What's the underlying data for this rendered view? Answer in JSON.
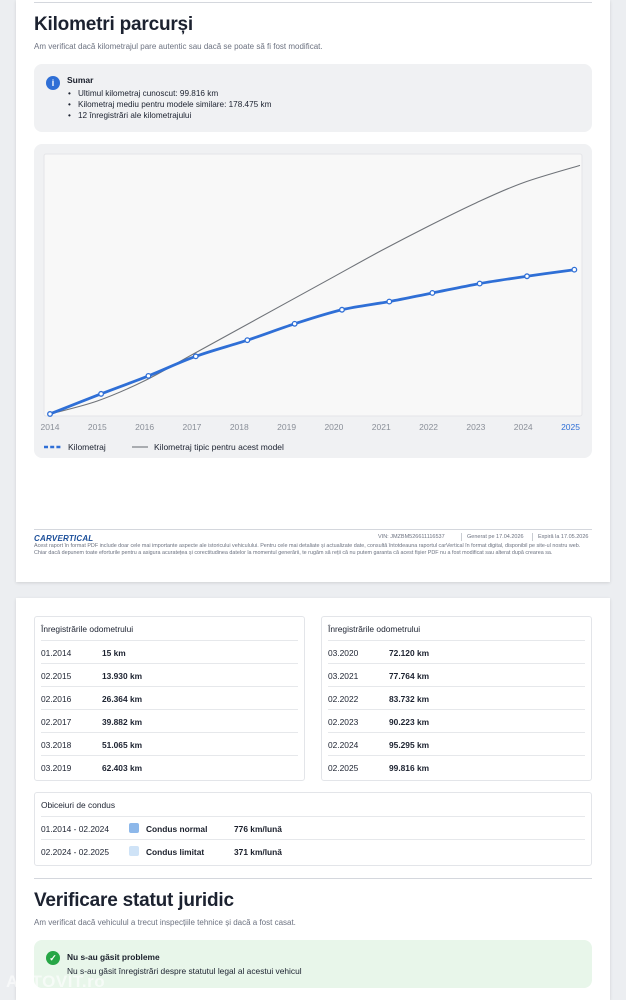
{
  "mileage_section": {
    "title": "Kilometri parcurși",
    "subtitle": "Am verificat dacă kilometrajul pare autentic sau dacă se poate să fi fost modificat.",
    "summary": {
      "title": "Sumar",
      "items": [
        "Ultimul kilometraj cunoscut: 99.816 km",
        "Kilometraj mediu pentru modele similare: 178.475 km",
        "12 înregistrări ale kilometrajului"
      ]
    }
  },
  "chart_data": {
    "type": "line",
    "x_ticks": [
      "2014",
      "2015",
      "2016",
      "2017",
      "2018",
      "2019",
      "2020",
      "2021",
      "2022",
      "2023",
      "2024",
      "2025"
    ],
    "highlight_tick": "2025",
    "xlim": [
      2014,
      2025.2
    ],
    "ylim": [
      0,
      178475
    ],
    "grid": false,
    "legend_position": "bottom-left",
    "series": [
      {
        "name": "Kilometraj",
        "color": "#2f6fd6",
        "style": "solid-with-markers",
        "points": [
          [
            2014.0,
            15
          ],
          [
            2015.08,
            13930
          ],
          [
            2016.08,
            26364
          ],
          [
            2017.08,
            39882
          ],
          [
            2018.17,
            51065
          ],
          [
            2019.17,
            62403
          ],
          [
            2020.17,
            72120
          ],
          [
            2021.17,
            77764
          ],
          [
            2022.08,
            83732
          ],
          [
            2023.08,
            90223
          ],
          [
            2024.08,
            95295
          ],
          [
            2025.08,
            99816
          ]
        ]
      },
      {
        "name": "Kilometraj tipic pentru acest model",
        "color": "#6f7379",
        "style": "thin",
        "points": [
          [
            2014.0,
            0
          ],
          [
            2015.0,
            9000
          ],
          [
            2016.0,
            23000
          ],
          [
            2017.0,
            41000
          ],
          [
            2018.0,
            59000
          ],
          [
            2019.0,
            77000
          ],
          [
            2020.0,
            95000
          ],
          [
            2021.0,
            113000
          ],
          [
            2022.0,
            130000
          ],
          [
            2023.0,
            146000
          ],
          [
            2024.0,
            160000
          ],
          [
            2025.2,
            172000
          ]
        ]
      }
    ]
  },
  "footer": {
    "brand": "CARVERTICAL",
    "vin": "VIN: JMZBM526611116537",
    "generated": "Generat pe 17.04.2026",
    "expires": "Expiră la 17.05.2026",
    "disclaimer": "Acest raport în format PDF include doar cele mai importante aspecte ale istoricului vehiculului. Pentru cele mai detaliate și actualizate date, consultă întotdeauna raportul carVertical în format digital, disponibil pe site-ul nostru web. Chiar dacă depunem toate eforturile pentru a asigura acuratețea și corectitudinea datelor la momentul generării, te rugăm să reții că nu putem garanta că acest fișier PDF nu a fost modificat sau alterat după crearea sa."
  },
  "odometer_tables": [
    {
      "title": "Înregistrările odometrului",
      "rows": [
        {
          "date": "01.2014",
          "value": "15 km"
        },
        {
          "date": "02.2015",
          "value": "13.930 km"
        },
        {
          "date": "02.2016",
          "value": "26.364 km"
        },
        {
          "date": "02.2017",
          "value": "39.882 km"
        },
        {
          "date": "03.2018",
          "value": "51.065 km"
        },
        {
          "date": "03.2019",
          "value": "62.403 km"
        }
      ]
    },
    {
      "title": "Înregistrările odometrului",
      "rows": [
        {
          "date": "03.2020",
          "value": "72.120 km"
        },
        {
          "date": "03.2021",
          "value": "77.764 km"
        },
        {
          "date": "02.2022",
          "value": "83.732 km"
        },
        {
          "date": "02.2023",
          "value": "90.223 km"
        },
        {
          "date": "02.2024",
          "value": "95.295 km"
        },
        {
          "date": "02.2025",
          "value": "99.816 km"
        }
      ]
    }
  ],
  "driving_habits": {
    "title": "Obiceiuri de condus",
    "rows": [
      {
        "period": "01.2014 - 02.2024",
        "label": "Condus normal",
        "rate": "776 km/lună",
        "color": "#8db8ea"
      },
      {
        "period": "02.2024 - 02.2025",
        "label": "Condus limitat",
        "rate": "371 km/lună",
        "color": "#cfe3f7"
      }
    ]
  },
  "legal_section": {
    "title": "Verificare statut juridic",
    "subtitle": "Am verificat dacă vehiculul a trecut inspecțiile tehnice și dacă a fost casat.",
    "result_title": "Nu s-au găsit probleme",
    "result_text": "Nu s-au găsit înregistrări despre statutul legal al acestui vehicul"
  },
  "watermark": "AUTOVIT.ro"
}
